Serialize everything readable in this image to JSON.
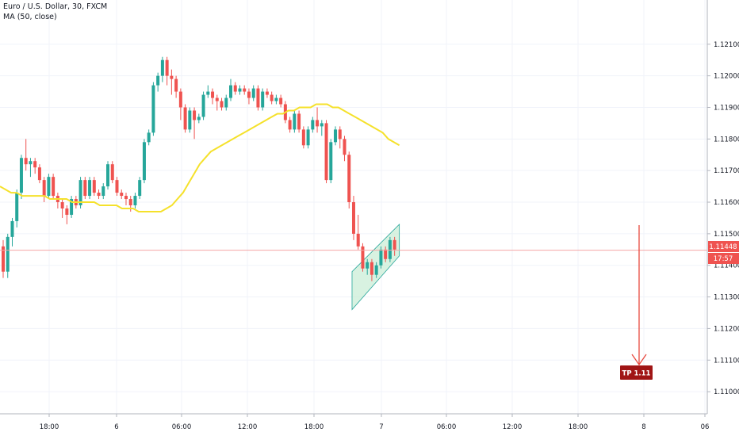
{
  "legend": {
    "symbol_line": "Euro / U.S. Dollar, 30, FXCM",
    "ma_line": "MA (50, close)"
  },
  "colors": {
    "up": "#26a69a",
    "down": "#ef5350",
    "ma": "#f5e12b",
    "price_line": "#f4a6a6",
    "grid": "#f0f3fa",
    "channel_fill": "#c8ecd4",
    "channel_stroke": "#26a69a",
    "projection": "#e84a3f",
    "tp_bg": "#a01515"
  },
  "chart_data": {
    "type": "candlestick",
    "y_ticks": [
      "1.12100",
      "1.12000",
      "1.11900",
      "1.11800",
      "1.11700",
      "1.11600",
      "1.11500",
      "1.11400",
      "1.11300",
      "1.11200",
      "1.11100",
      "1.11000"
    ],
    "y_tick_values": [
      1.121,
      1.12,
      1.119,
      1.118,
      1.117,
      1.116,
      1.115,
      1.114,
      1.113,
      1.112,
      1.111,
      1.11
    ],
    "ylim": [
      1.1093,
      1.1224
    ],
    "x_ticks": [
      "18:00",
      "6",
      "06:00",
      "12:00",
      "18:00",
      "7",
      "06:00",
      "12:00",
      "18:00",
      "8",
      "06"
    ],
    "price_label": "1.11448",
    "price_value": 1.11448,
    "countdown_label": "17:57",
    "take_profit_label": "TP 1.11",
    "candles": [
      [
        1.1146,
        1.1148,
        1.1136,
        1.1138
      ],
      [
        1.1138,
        1.115,
        1.1136,
        1.1149
      ],
      [
        1.1149,
        1.1155,
        1.1146,
        1.1154
      ],
      [
        1.1154,
        1.1164,
        1.1152,
        1.1163
      ],
      [
        1.1163,
        1.1175,
        1.1161,
        1.1174
      ],
      [
        1.1174,
        1.118,
        1.117,
        1.1172
      ],
      [
        1.1172,
        1.1174,
        1.1168,
        1.1173
      ],
      [
        1.1173,
        1.1174,
        1.1169,
        1.1171
      ],
      [
        1.1171,
        1.1172,
        1.1166,
        1.1167
      ],
      [
        1.1167,
        1.1168,
        1.116,
        1.1162
      ],
      [
        1.1162,
        1.1169,
        1.1161,
        1.1168
      ],
      [
        1.1168,
        1.1169,
        1.1161,
        1.1162
      ],
      [
        1.1162,
        1.1163,
        1.1158,
        1.116
      ],
      [
        1.116,
        1.1161,
        1.1155,
        1.1158
      ],
      [
        1.1158,
        1.1159,
        1.1153,
        1.1156
      ],
      [
        1.1156,
        1.1162,
        1.1155,
        1.1161
      ],
      [
        1.1161,
        1.1162,
        1.1158,
        1.1159
      ],
      [
        1.1159,
        1.1168,
        1.1158,
        1.1167
      ],
      [
        1.1167,
        1.1168,
        1.1161,
        1.1162
      ],
      [
        1.1162,
        1.1168,
        1.1161,
        1.1167
      ],
      [
        1.1167,
        1.1168,
        1.1162,
        1.1163
      ],
      [
        1.1163,
        1.1164,
        1.1161,
        1.1162
      ],
      [
        1.1162,
        1.1166,
        1.1161,
        1.1165
      ],
      [
        1.1165,
        1.1173,
        1.1164,
        1.1172
      ],
      [
        1.1172,
        1.1173,
        1.1166,
        1.1167
      ],
      [
        1.1167,
        1.1168,
        1.1162,
        1.1163
      ],
      [
        1.1163,
        1.1164,
        1.1161,
        1.1162
      ],
      [
        1.1162,
        1.1163,
        1.1159,
        1.1161
      ],
      [
        1.1161,
        1.1162,
        1.1157,
        1.1159
      ],
      [
        1.1159,
        1.1163,
        1.1158,
        1.1162
      ],
      [
        1.1162,
        1.1168,
        1.1161,
        1.1167
      ],
      [
        1.1167,
        1.118,
        1.1166,
        1.1179
      ],
      [
        1.1179,
        1.1183,
        1.1178,
        1.1182
      ],
      [
        1.1182,
        1.1198,
        1.1181,
        1.1197
      ],
      [
        1.1197,
        1.1201,
        1.1195,
        1.12
      ],
      [
        1.12,
        1.1206,
        1.1198,
        1.1205
      ],
      [
        1.1205,
        1.1206,
        1.1197,
        1.12
      ],
      [
        1.12,
        1.1202,
        1.1194,
        1.1199
      ],
      [
        1.1199,
        1.12,
        1.1193,
        1.1195
      ],
      [
        1.1195,
        1.1196,
        1.1186,
        1.119
      ],
      [
        1.119,
        1.1191,
        1.1182,
        1.1183
      ],
      [
        1.1183,
        1.119,
        1.1182,
        1.1189
      ],
      [
        1.1189,
        1.119,
        1.118,
        1.1186
      ],
      [
        1.1186,
        1.1188,
        1.1185,
        1.1187
      ],
      [
        1.1187,
        1.1195,
        1.1186,
        1.1194
      ],
      [
        1.1194,
        1.1197,
        1.1193,
        1.1195
      ],
      [
        1.1195,
        1.1196,
        1.1191,
        1.1193
      ],
      [
        1.1193,
        1.1194,
        1.1189,
        1.1192
      ],
      [
        1.1192,
        1.1193,
        1.1189,
        1.119
      ],
      [
        1.119,
        1.1194,
        1.1189,
        1.1193
      ],
      [
        1.1193,
        1.1199,
        1.1192,
        1.1197
      ],
      [
        1.1197,
        1.1198,
        1.1194,
        1.1195
      ],
      [
        1.1195,
        1.1197,
        1.1194,
        1.1196
      ],
      [
        1.1196,
        1.1197,
        1.1194,
        1.1195
      ],
      [
        1.1195,
        1.1196,
        1.1191,
        1.1193
      ],
      [
        1.1193,
        1.1197,
        1.1192,
        1.1196
      ],
      [
        1.1196,
        1.1197,
        1.1189,
        1.119
      ],
      [
        1.119,
        1.1196,
        1.1189,
        1.1195
      ],
      [
        1.1195,
        1.1196,
        1.1193,
        1.1194
      ],
      [
        1.1194,
        1.1195,
        1.1191,
        1.1192
      ],
      [
        1.1192,
        1.1194,
        1.1191,
        1.1193
      ],
      [
        1.1193,
        1.1194,
        1.119,
        1.1191
      ],
      [
        1.1191,
        1.1192,
        1.1185,
        1.1186
      ],
      [
        1.1186,
        1.1187,
        1.1182,
        1.1183
      ],
      [
        1.1183,
        1.1189,
        1.1182,
        1.1188
      ],
      [
        1.1188,
        1.1189,
        1.1182,
        1.1183
      ],
      [
        1.1183,
        1.1184,
        1.1177,
        1.1178
      ],
      [
        1.1178,
        1.1184,
        1.1177,
        1.1183
      ],
      [
        1.1183,
        1.1187,
        1.1182,
        1.1186
      ],
      [
        1.1186,
        1.119,
        1.1182,
        1.1184
      ],
      [
        1.1184,
        1.1186,
        1.1181,
        1.1185
      ],
      [
        1.1185,
        1.1186,
        1.1166,
        1.1167
      ],
      [
        1.1167,
        1.118,
        1.1166,
        1.1179
      ],
      [
        1.1179,
        1.1184,
        1.1178,
        1.1183
      ],
      [
        1.1183,
        1.1184,
        1.1177,
        1.118
      ],
      [
        1.118,
        1.1181,
        1.1173,
        1.1175
      ],
      [
        1.1175,
        1.1176,
        1.1158,
        1.116
      ],
      [
        1.116,
        1.1162,
        1.1148,
        1.115
      ],
      [
        1.115,
        1.1156,
        1.1145,
        1.1146
      ],
      [
        1.1146,
        1.1147,
        1.1138,
        1.1139
      ],
      [
        1.1139,
        1.1142,
        1.1137,
        1.1141
      ],
      [
        1.1141,
        1.1142,
        1.1135,
        1.1137
      ],
      [
        1.1137,
        1.1141,
        1.1136,
        1.114
      ],
      [
        1.114,
        1.1146,
        1.1139,
        1.1145
      ],
      [
        1.1145,
        1.1146,
        1.1141,
        1.1142
      ],
      [
        1.1142,
        1.1149,
        1.1141,
        1.1148
      ],
      [
        1.1148,
        1.1149,
        1.1143,
        1.1145
      ]
    ],
    "ma": [
      1.1165,
      1.1164,
      1.1163,
      1.1163,
      1.1162,
      1.1162,
      1.1162,
      1.1162,
      1.1162,
      1.1161,
      1.1161,
      1.1161,
      1.1161,
      1.116,
      1.116,
      1.116,
      1.116,
      1.116,
      1.1159,
      1.1159,
      1.1159,
      1.1159,
      1.1158,
      1.1158,
      1.1158,
      1.1157,
      1.1157,
      1.1157,
      1.1157,
      1.1157,
      1.1158,
      1.1159,
      1.1161,
      1.1163,
      1.1166,
      1.1169,
      1.1172,
      1.1174,
      1.1176,
      1.1177,
      1.1178,
      1.1179,
      1.118,
      1.1181,
      1.1182,
      1.1183,
      1.1184,
      1.1185,
      1.1186,
      1.1187,
      1.1188,
      1.1188,
      1.1189,
      1.1189,
      1.119,
      1.119,
      1.119,
      1.1191,
      1.1191,
      1.1191,
      1.119,
      1.119,
      1.1189,
      1.1188,
      1.1187,
      1.1186,
      1.1185,
      1.1184,
      1.1183,
      1.1182,
      1.118,
      1.1179,
      1.1178
    ]
  }
}
